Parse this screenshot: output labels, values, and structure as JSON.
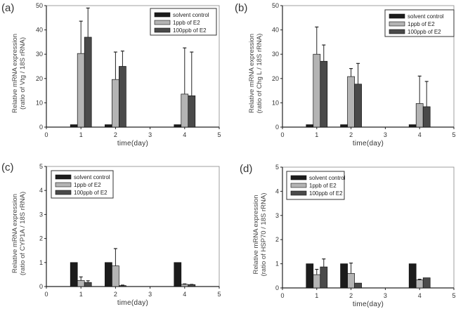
{
  "figure": {
    "series_names": [
      "solvent control",
      "1ppb of E2",
      "100ppb of E2"
    ],
    "series_colors": [
      "#1c1c1c",
      "#b4b4b4",
      "#4a4a4a"
    ]
  },
  "chart_data": [
    {
      "panel": "(a)",
      "type": "bar",
      "title": "",
      "xlabel": "time(day)",
      "ylabel": [
        "Relative mRNA expression",
        "(ratio of Vtg / 18S rRNA)"
      ],
      "xlim": [
        0,
        5
      ],
      "ylim": [
        0,
        50
      ],
      "xticks": [
        "0",
        "1",
        "2",
        "3",
        "4",
        "5"
      ],
      "yticks": [
        "0",
        "10",
        "20",
        "30",
        "40",
        "50"
      ],
      "legend_position": "top-right",
      "legend": [
        "solvent control",
        "1ppb of E2",
        "100ppb of E2"
      ],
      "categories": [
        1,
        2,
        4
      ],
      "series": [
        {
          "name": "solvent control",
          "values": [
            1,
            1,
            1
          ],
          "errors": [
            0,
            0,
            0
          ]
        },
        {
          "name": "1ppb of E2",
          "values": [
            30.3,
            19.6,
            13.6
          ],
          "errors": [
            13.3,
            11.3,
            19.0
          ]
        },
        {
          "name": "100ppb of E2",
          "values": [
            37.0,
            25.0,
            12.9
          ],
          "errors": [
            12.0,
            6.3,
            18.0
          ]
        }
      ]
    },
    {
      "panel": "(b)",
      "type": "bar",
      "title": "",
      "xlabel": "time(day)",
      "ylabel": [
        "Relative mRNA expression",
        "(ratio of Chg L / 18S rRNA)"
      ],
      "xlim": [
        0,
        5
      ],
      "ylim": [
        0,
        50
      ],
      "xticks": [
        "0",
        "1",
        "2",
        "3",
        "4",
        "5"
      ],
      "yticks": [
        "0",
        "10",
        "20",
        "30",
        "40",
        "50"
      ],
      "legend_position": "top-right",
      "legend": [
        "solvent control",
        "1ppb of E2",
        "100ppb of E2"
      ],
      "categories": [
        1,
        2,
        4
      ],
      "series": [
        {
          "name": "solvent control",
          "values": [
            1,
            1,
            1
          ],
          "errors": [
            0,
            0,
            0
          ]
        },
        {
          "name": "1ppb of E2",
          "values": [
            30.0,
            20.8,
            9.7
          ],
          "errors": [
            11.2,
            3.3,
            11.3
          ]
        },
        {
          "name": "100ppb of E2",
          "values": [
            27.1,
            17.7,
            8.4
          ],
          "errors": [
            6.7,
            8.5,
            10.4
          ]
        }
      ]
    },
    {
      "panel": "(c)",
      "type": "bar",
      "title": "",
      "xlabel": "time(day)",
      "ylabel": [
        "Relative mRNA expression",
        "(ratio of CYP1A / 18S rRNA)"
      ],
      "xlim": [
        0,
        5
      ],
      "ylim": [
        0,
        5
      ],
      "xticks": [
        "0",
        "1",
        "2",
        "3",
        "4",
        "5"
      ],
      "yticks": [
        "0",
        "1",
        "2",
        "3",
        "4",
        "5"
      ],
      "legend_position": "top-left",
      "legend": [
        "solvent control",
        "1ppb of E2",
        "100ppb of E2"
      ],
      "categories": [
        1,
        2,
        4
      ],
      "series": [
        {
          "name": "solvent control",
          "values": [
            1,
            1,
            1
          ],
          "errors": [
            0,
            0,
            0
          ]
        },
        {
          "name": "1ppb of E2",
          "values": [
            0.25,
            0.86,
            0.09
          ],
          "errors": [
            0.15,
            0.72,
            0.02
          ]
        },
        {
          "name": "100ppb of E2",
          "values": [
            0.17,
            0.04,
            0.08
          ],
          "errors": [
            0.07,
            0.02,
            0.01
          ]
        }
      ]
    },
    {
      "panel": "(d)",
      "type": "bar",
      "title": "",
      "xlabel": "time(day)",
      "ylabel": [
        "Relative mRNA expression",
        "(ratio of HSP70 / 18S rRNA)"
      ],
      "xlim": [
        0,
        5
      ],
      "ylim": [
        0,
        5
      ],
      "xticks": [
        "0",
        "1",
        "2",
        "3",
        "4",
        "5"
      ],
      "yticks": [
        "0",
        "1",
        "2",
        "3",
        "4",
        "5"
      ],
      "legend_position": "top-left",
      "legend": [
        "solvent control",
        "1ppb of E2",
        "100ppb of E2"
      ],
      "categories": [
        1,
        2,
        4
      ],
      "series": [
        {
          "name": "solvent control",
          "values": [
            1,
            1,
            1
          ],
          "errors": [
            0,
            0,
            0
          ]
        },
        {
          "name": "1ppb of E2",
          "values": [
            0.55,
            0.6,
            0.33
          ],
          "errors": [
            0.22,
            0.43,
            0.03
          ]
        },
        {
          "name": "100ppb of E2",
          "values": [
            0.87,
            0.2,
            0.42
          ],
          "errors": [
            0.33,
            0,
            0
          ]
        }
      ]
    }
  ]
}
